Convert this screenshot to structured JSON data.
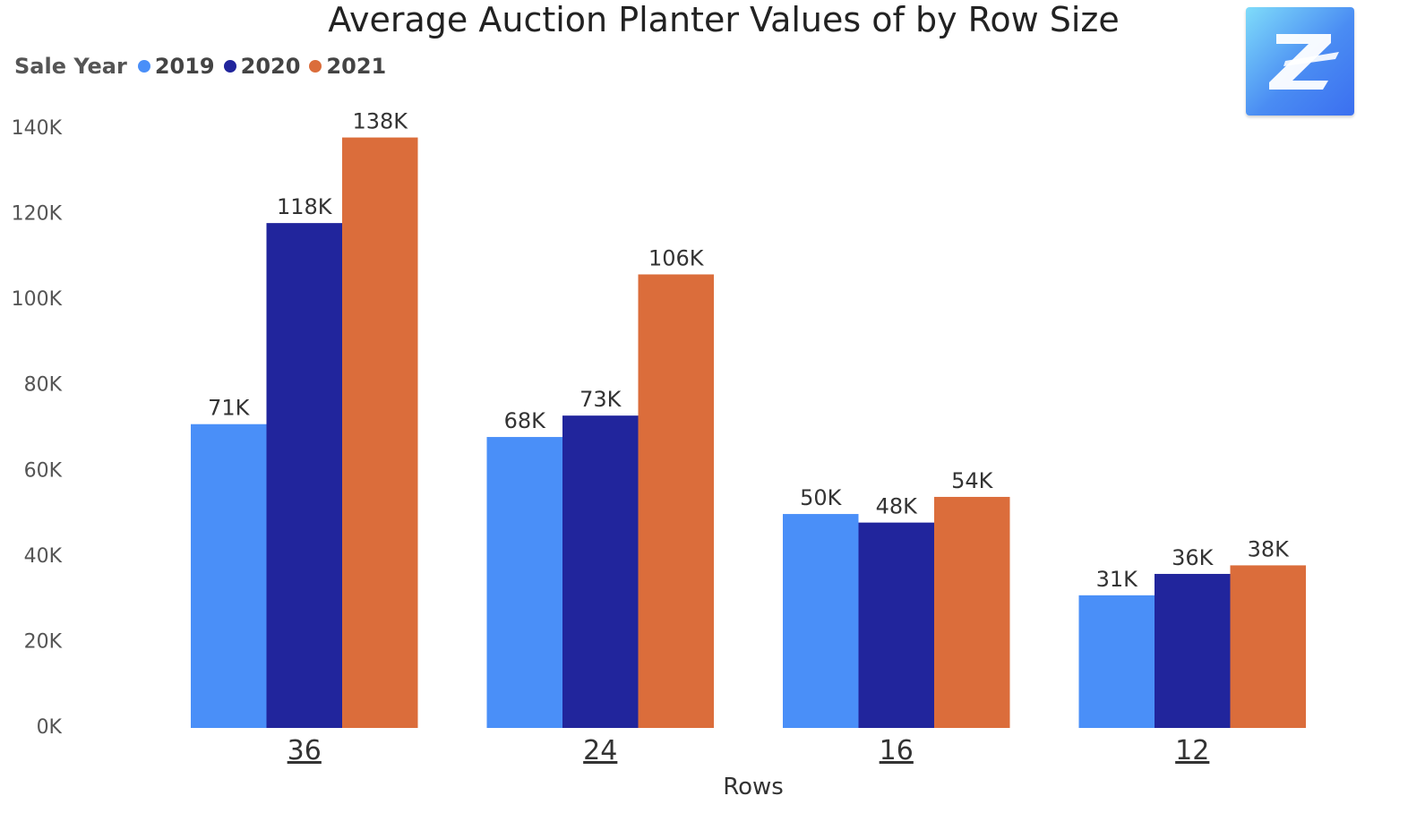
{
  "chart_data": {
    "type": "bar",
    "title": "Average Auction Planter Values of by Row Size",
    "xlabel": "Rows",
    "ylabel": "",
    "legend_title": "Sale Year",
    "legend_position": "top-left",
    "categories": [
      "36",
      "24",
      "16",
      "12"
    ],
    "series": [
      {
        "name": "2019",
        "color": "#4a8ff8",
        "values": [
          71,
          68,
          50,
          31
        ],
        "labels": [
          "71K",
          "68K",
          "50K",
          "31K"
        ]
      },
      {
        "name": "2020",
        "color": "#21259c",
        "values": [
          118,
          73,
          48,
          36
        ],
        "labels": [
          "118K",
          "73K",
          "48K",
          "36K"
        ]
      },
      {
        "name": "2021",
        "color": "#db6d3b",
        "values": [
          138,
          106,
          54,
          38
        ],
        "labels": [
          "138K",
          "106K",
          "54K",
          "38K"
        ]
      }
    ],
    "ylim": [
      0,
      140
    ],
    "yticks": [
      0,
      20,
      40,
      60,
      80,
      100,
      120,
      140
    ],
    "ytick_labels": [
      "0K",
      "20K",
      "40K",
      "60K",
      "80K",
      "100K",
      "120K",
      "140K"
    ],
    "grid": false
  },
  "logo": {
    "icon": "z-logo-icon"
  }
}
